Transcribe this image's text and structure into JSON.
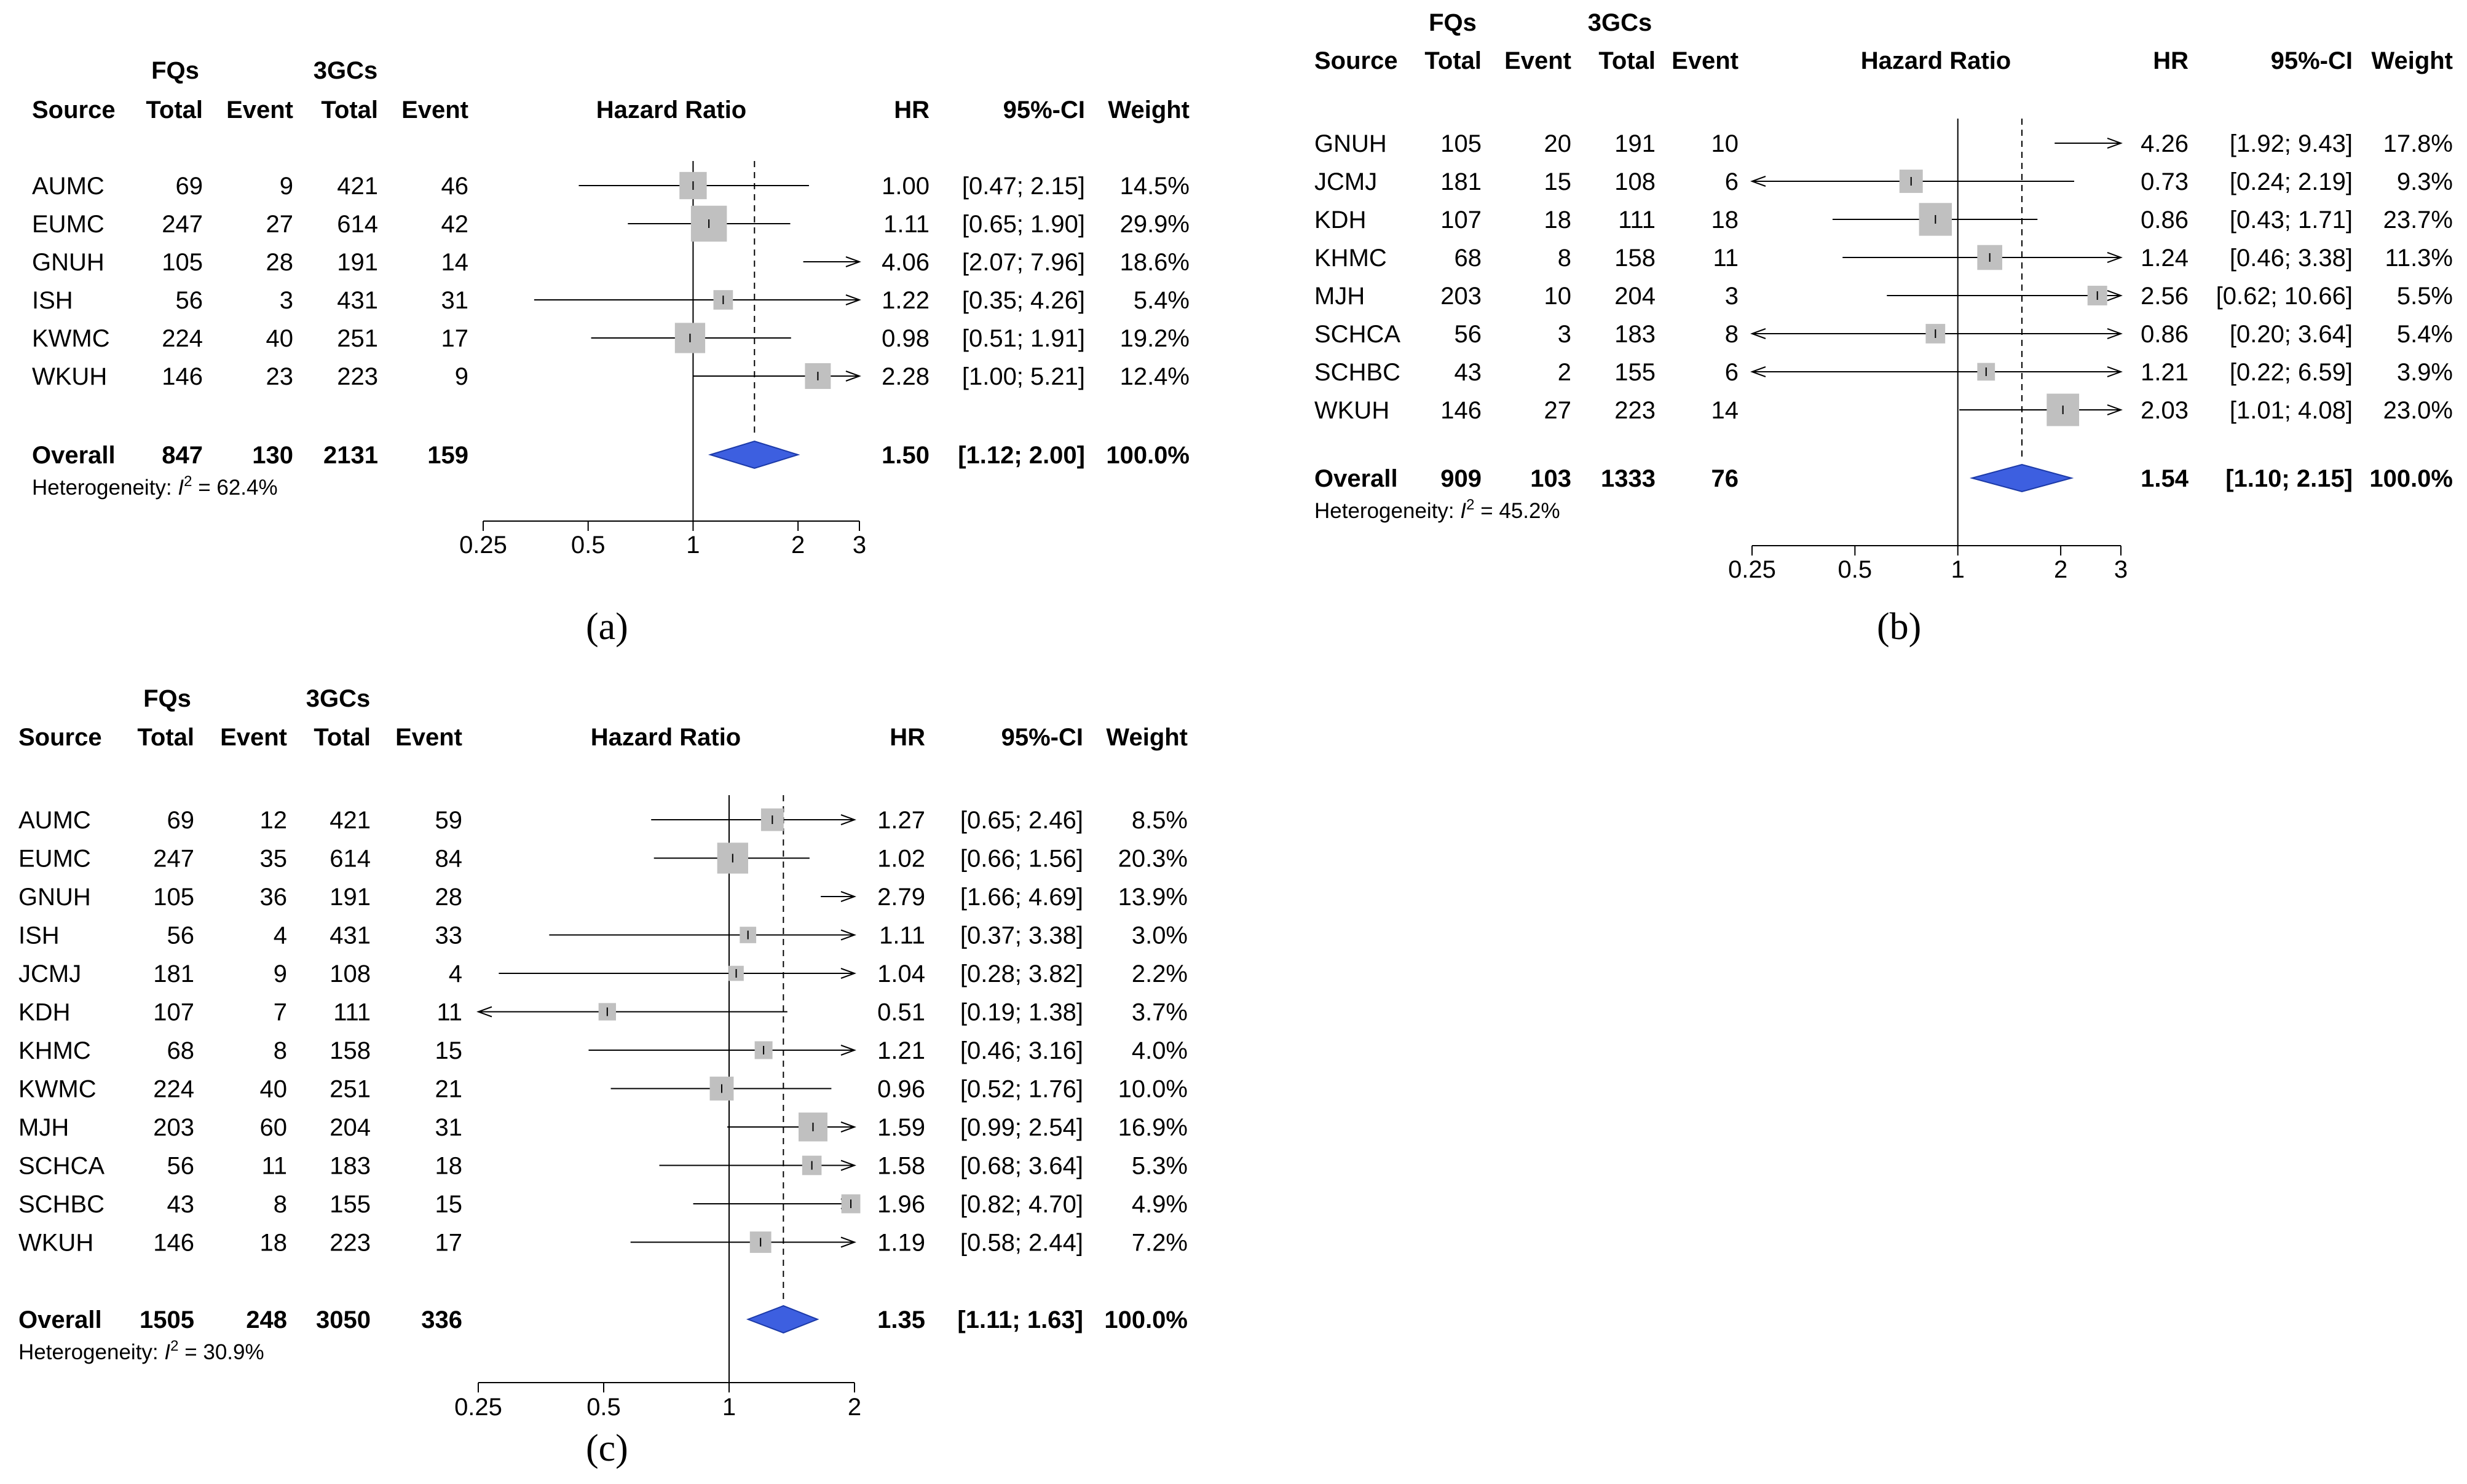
{
  "chart_data": [
    {
      "type": "forest",
      "panel": "(a)",
      "headers": {
        "group1": "FQs",
        "group2": "3GCs",
        "source": "Source",
        "total1": "Total",
        "event1": "Event",
        "total2": "Total",
        "event2": "Event",
        "plot": "Hazard Ratio",
        "hr": "HR",
        "ci": "95%-CI",
        "weight": "Weight"
      },
      "scale": "log",
      "xlim": [
        0.25,
        3
      ],
      "ticks": [
        0.25,
        0.5,
        1,
        2,
        3
      ],
      "tick_labels": [
        "0.25",
        "0.5",
        "1",
        "2",
        "3"
      ],
      "reference_line": 1,
      "studies": [
        {
          "source": "AUMC",
          "fq_total": "69",
          "fq_event": "9",
          "gc_total": "421",
          "gc_event": "46",
          "hr": 1.0,
          "lower": 0.47,
          "upper": 2.15,
          "hr_text": "1.00",
          "ci_text": "[0.47; 2.15]",
          "weight": 14.5,
          "weight_text": "14.5%"
        },
        {
          "source": "EUMC",
          "fq_total": "247",
          "fq_event": "27",
          "gc_total": "614",
          "gc_event": "42",
          "hr": 1.11,
          "lower": 0.65,
          "upper": 1.9,
          "hr_text": "1.11",
          "ci_text": "[0.65; 1.90]",
          "weight": 29.9,
          "weight_text": "29.9%"
        },
        {
          "source": "GNUH",
          "fq_total": "105",
          "fq_event": "28",
          "gc_total": "191",
          "gc_event": "14",
          "hr": 4.06,
          "lower": 2.07,
          "upper": 7.96,
          "hr_text": "4.06",
          "ci_text": "[2.07; 7.96]",
          "weight": 18.6,
          "weight_text": "18.6%"
        },
        {
          "source": "ISH",
          "fq_total": "56",
          "fq_event": "3",
          "gc_total": "431",
          "gc_event": "31",
          "hr": 1.22,
          "lower": 0.35,
          "upper": 4.26,
          "hr_text": "1.22",
          "ci_text": "[0.35; 4.26]",
          "weight": 5.4,
          "weight_text": "5.4%"
        },
        {
          "source": "KWMC",
          "fq_total": "224",
          "fq_event": "40",
          "gc_total": "251",
          "gc_event": "17",
          "hr": 0.98,
          "lower": 0.51,
          "upper": 1.91,
          "hr_text": "0.98",
          "ci_text": "[0.51; 1.91]",
          "weight": 19.2,
          "weight_text": "19.2%"
        },
        {
          "source": "WKUH",
          "fq_total": "146",
          "fq_event": "23",
          "gc_total": "223",
          "gc_event": "9",
          "hr": 2.28,
          "lower": 1.0,
          "upper": 5.21,
          "hr_text": "2.28",
          "ci_text": "[1.00; 5.21]",
          "weight": 12.4,
          "weight_text": "12.4%"
        }
      ],
      "overall": {
        "source": "Overall",
        "fq_total": "847",
        "fq_event": "130",
        "gc_total": "2131",
        "gc_event": "159",
        "hr": 1.5,
        "lower": 1.12,
        "upper": 2.0,
        "hr_text": "1.50",
        "ci_text": "[1.12; 2.00]",
        "weight_text": "100.0%"
      },
      "heterogeneity": {
        "label": "Heterogeneity: ",
        "symbol": "I",
        "sup": "2",
        "value": " = 62.4%"
      }
    },
    {
      "type": "forest",
      "panel": "(b)",
      "headers": {
        "group1": "FQs",
        "group2": "3GCs",
        "source": "Source",
        "total1": "Total",
        "event1": "Event",
        "total2": "Total",
        "event2": "Event",
        "plot": "Hazard Ratio",
        "hr": "HR",
        "ci": "95%-CI",
        "weight": "Weight"
      },
      "scale": "log",
      "xlim": [
        0.25,
        3
      ],
      "ticks": [
        0.25,
        0.5,
        1,
        2,
        3
      ],
      "tick_labels": [
        "0.25",
        "0.5",
        "1",
        "2",
        "3"
      ],
      "reference_line": 1,
      "studies": [
        {
          "source": "GNUH",
          "fq_total": "105",
          "fq_event": "20",
          "gc_total": "191",
          "gc_event": "10",
          "hr": 4.26,
          "lower": 1.92,
          "upper": 9.43,
          "hr_text": "4.26",
          "ci_text": "[1.92; 9.43]",
          "weight": 17.8,
          "weight_text": "17.8%"
        },
        {
          "source": "JCMJ",
          "fq_total": "181",
          "fq_event": "15",
          "gc_total": "108",
          "gc_event": "6",
          "hr": 0.73,
          "lower": 0.24,
          "upper": 2.19,
          "hr_text": "0.73",
          "ci_text": "[0.24; 2.19]",
          "weight": 9.3,
          "weight_text": "9.3%"
        },
        {
          "source": "KDH",
          "fq_total": "107",
          "fq_event": "18",
          "gc_total": "111",
          "gc_event": "18",
          "hr": 0.86,
          "lower": 0.43,
          "upper": 1.71,
          "hr_text": "0.86",
          "ci_text": "[0.43; 1.71]",
          "weight": 23.7,
          "weight_text": "23.7%"
        },
        {
          "source": "KHMC",
          "fq_total": "68",
          "fq_event": "8",
          "gc_total": "158",
          "gc_event": "11",
          "hr": 1.24,
          "lower": 0.46,
          "upper": 3.38,
          "hr_text": "1.24",
          "ci_text": "[0.46; 3.38]",
          "weight": 11.3,
          "weight_text": "11.3%"
        },
        {
          "source": "MJH",
          "fq_total": "203",
          "fq_event": "10",
          "gc_total": "204",
          "gc_event": "3",
          "hr": 2.56,
          "lower": 0.62,
          "upper": 10.66,
          "hr_text": "2.56",
          "ci_text": "[0.62; 10.66]",
          "weight": 5.5,
          "weight_text": "5.5%"
        },
        {
          "source": "SCHCA",
          "fq_total": "56",
          "fq_event": "3",
          "gc_total": "183",
          "gc_event": "8",
          "hr": 0.86,
          "lower": 0.2,
          "upper": 3.64,
          "hr_text": "0.86",
          "ci_text": "[0.20; 3.64]",
          "weight": 5.4,
          "weight_text": "5.4%"
        },
        {
          "source": "SCHBC",
          "fq_total": "43",
          "fq_event": "2",
          "gc_total": "155",
          "gc_event": "6",
          "hr": 1.21,
          "lower": 0.22,
          "upper": 6.59,
          "hr_text": "1.21",
          "ci_text": "[0.22; 6.59]",
          "weight": 3.9,
          "weight_text": "3.9%"
        },
        {
          "source": "WKUH",
          "fq_total": "146",
          "fq_event": "27",
          "gc_total": "223",
          "gc_event": "14",
          "hr": 2.03,
          "lower": 1.01,
          "upper": 4.08,
          "hr_text": "2.03",
          "ci_text": "[1.01; 4.08]",
          "weight": 23.0,
          "weight_text": "23.0%"
        }
      ],
      "overall": {
        "source": "Overall",
        "fq_total": "909",
        "fq_event": "103",
        "gc_total": "1333",
        "gc_event": "76",
        "hr": 1.54,
        "lower": 1.1,
        "upper": 2.15,
        "hr_text": "1.54",
        "ci_text": "[1.10; 2.15]",
        "weight_text": "100.0%"
      },
      "heterogeneity": {
        "label": "Heterogeneity: ",
        "symbol": "I",
        "sup": "2",
        "value": " = 45.2%"
      }
    },
    {
      "type": "forest",
      "panel": "(c)",
      "headers": {
        "group1": "FQs",
        "group2": "3GCs",
        "source": "Source",
        "total1": "Total",
        "event1": "Event",
        "total2": "Total",
        "event2": "Event",
        "plot": "Hazard Ratio",
        "hr": "HR",
        "ci": "95%-CI",
        "weight": "Weight"
      },
      "scale": "log",
      "xlim": [
        0.25,
        2
      ],
      "ticks": [
        0.25,
        0.5,
        1,
        2
      ],
      "tick_labels": [
        "0.25",
        "0.5",
        "1",
        "2"
      ],
      "reference_line": 1,
      "studies": [
        {
          "source": "AUMC",
          "fq_total": "69",
          "fq_event": "12",
          "gc_total": "421",
          "gc_event": "59",
          "hr": 1.27,
          "lower": 0.65,
          "upper": 2.46,
          "hr_text": "1.27",
          "ci_text": "[0.65; 2.46]",
          "weight": 8.5,
          "weight_text": "8.5%"
        },
        {
          "source": "EUMC",
          "fq_total": "247",
          "fq_event": "35",
          "gc_total": "614",
          "gc_event": "84",
          "hr": 1.02,
          "lower": 0.66,
          "upper": 1.56,
          "hr_text": "1.02",
          "ci_text": "[0.66; 1.56]",
          "weight": 20.3,
          "weight_text": "20.3%"
        },
        {
          "source": "GNUH",
          "fq_total": "105",
          "fq_event": "36",
          "gc_total": "191",
          "gc_event": "28",
          "hr": 2.79,
          "lower": 1.66,
          "upper": 4.69,
          "hr_text": "2.79",
          "ci_text": "[1.66; 4.69]",
          "weight": 13.9,
          "weight_text": "13.9%"
        },
        {
          "source": "ISH",
          "fq_total": "56",
          "fq_event": "4",
          "gc_total": "431",
          "gc_event": "33",
          "hr": 1.11,
          "lower": 0.37,
          "upper": 3.38,
          "hr_text": "1.11",
          "ci_text": "[0.37; 3.38]",
          "weight": 3.0,
          "weight_text": "3.0%"
        },
        {
          "source": "JCMJ",
          "fq_total": "181",
          "fq_event": "9",
          "gc_total": "108",
          "gc_event": "4",
          "hr": 1.04,
          "lower": 0.28,
          "upper": 3.82,
          "hr_text": "1.04",
          "ci_text": "[0.28; 3.82]",
          "weight": 2.2,
          "weight_text": "2.2%"
        },
        {
          "source": "KDH",
          "fq_total": "107",
          "fq_event": "7",
          "gc_total": "111",
          "gc_event": "11",
          "hr": 0.51,
          "lower": 0.19,
          "upper": 1.38,
          "hr_text": "0.51",
          "ci_text": "[0.19; 1.38]",
          "weight": 3.7,
          "weight_text": "3.7%"
        },
        {
          "source": "KHMC",
          "fq_total": "68",
          "fq_event": "8",
          "gc_total": "158",
          "gc_event": "15",
          "hr": 1.21,
          "lower": 0.46,
          "upper": 3.16,
          "hr_text": "1.21",
          "ci_text": "[0.46; 3.16]",
          "weight": 4.0,
          "weight_text": "4.0%"
        },
        {
          "source": "KWMC",
          "fq_total": "224",
          "fq_event": "40",
          "gc_total": "251",
          "gc_event": "21",
          "hr": 0.96,
          "lower": 0.52,
          "upper": 1.76,
          "hr_text": "0.96",
          "ci_text": "[0.52; 1.76]",
          "weight": 10.0,
          "weight_text": "10.0%"
        },
        {
          "source": "MJH",
          "fq_total": "203",
          "fq_event": "60",
          "gc_total": "204",
          "gc_event": "31",
          "hr": 1.59,
          "lower": 0.99,
          "upper": 2.54,
          "hr_text": "1.59",
          "ci_text": "[0.99; 2.54]",
          "weight": 16.9,
          "weight_text": "16.9%"
        },
        {
          "source": "SCHCA",
          "fq_total": "56",
          "fq_event": "11",
          "gc_total": "183",
          "gc_event": "18",
          "hr": 1.58,
          "lower": 0.68,
          "upper": 3.64,
          "hr_text": "1.58",
          "ci_text": "[0.68; 3.64]",
          "weight": 5.3,
          "weight_text": "5.3%"
        },
        {
          "source": "SCHBC",
          "fq_total": "43",
          "fq_event": "8",
          "gc_total": "155",
          "gc_event": "15",
          "hr": 1.96,
          "lower": 0.82,
          "upper": 4.7,
          "hr_text": "1.96",
          "ci_text": "[0.82; 4.70]",
          "weight": 4.9,
          "weight_text": "4.9%"
        },
        {
          "source": "WKUH",
          "fq_total": "146",
          "fq_event": "18",
          "gc_total": "223",
          "gc_event": "17",
          "hr": 1.19,
          "lower": 0.58,
          "upper": 2.44,
          "hr_text": "1.19",
          "ci_text": "[0.58; 2.44]",
          "weight": 7.2,
          "weight_text": "7.2%"
        }
      ],
      "overall": {
        "source": "Overall",
        "fq_total": "1505",
        "fq_event": "248",
        "gc_total": "3050",
        "gc_event": "336",
        "hr": 1.35,
        "lower": 1.11,
        "upper": 1.63,
        "hr_text": "1.35",
        "ci_text": "[1.11; 1.63]",
        "weight_text": "100.0%"
      },
      "heterogeneity": {
        "label": "Heterogeneity: ",
        "symbol": "I",
        "sup": "2",
        "value": " = 30.9%"
      }
    }
  ]
}
